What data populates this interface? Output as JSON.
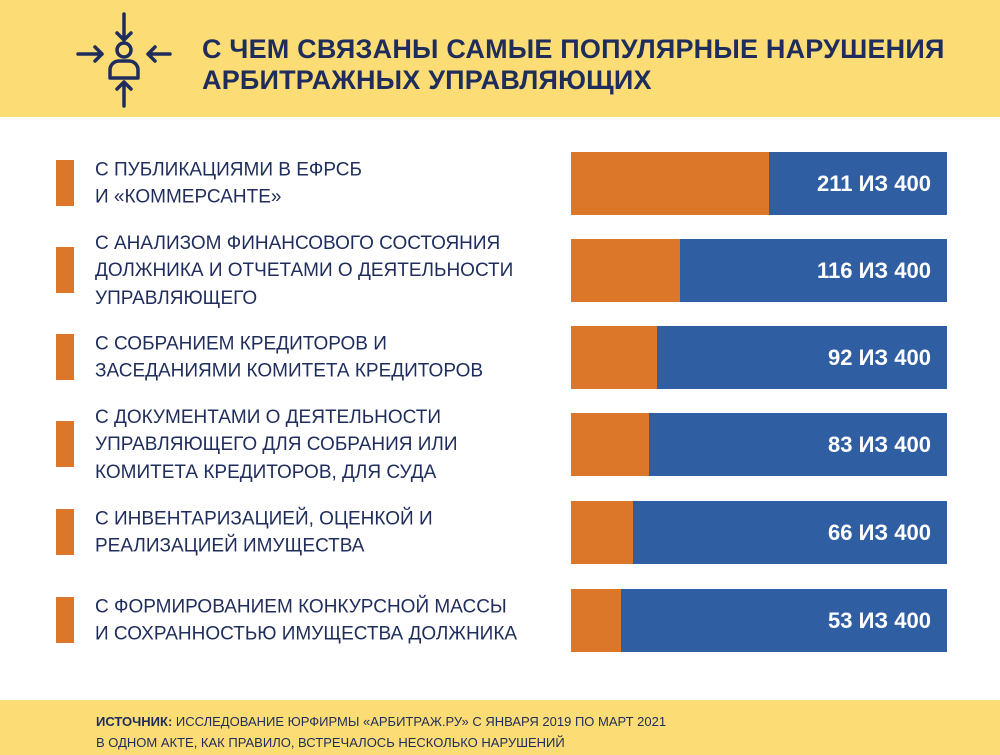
{
  "title_lines": [
    "С ЧЕМ СВЯЗАНЫ САМЫЕ ПОПУЛЯРНЫЕ НАРУШЕНИЯ",
    "АРБИТРАЖНЫХ УПРАВЛЯЮЩИХ"
  ],
  "colors": {
    "background_band": "#fcdc74",
    "accent": "#dc7628",
    "bar": "#2f5ea3",
    "text": "#1f2d5c"
  },
  "chart_data": {
    "type": "bar",
    "orientation": "horizontal-stacked",
    "total": 400,
    "categories": [
      "С ПУБЛИКАЦИЯМИ В ЕФРСБ И «КОММЕРСАНТЕ»",
      "С АНАЛИЗОМ ФИНАНСОВОГО СОСТОЯНИЯ ДОЛЖНИКА И ОТЧЕТАМИ О ДЕЯТЕЛЬНОСТИ УПРАВЛЯЮЩЕГО",
      "С СОБРАНИЕМ КРЕДИТОРОВ И ЗАСЕДАНИЯМИ КОМИТЕТА КРЕДИТОРОВ",
      "С ДОКУМЕНТАМИ О ДЕЯТЕЛЬНОСТИ УПРАВЛЯЮЩЕГО ДЛЯ СОБРАНИЯ ИЛИ КОМИТЕТА КРЕДИТОРОВ, ДЛЯ СУДА",
      "С ИНВЕНТАРИЗАЦИЕЙ, ОЦЕНКОЙ И РЕАЛИЗАЦИЕЙ ИМУЩЕСТВА",
      "С ФОРМИРОВАНИЕМ КОНКУРСНОЙ МАССЫ И СОХРАННОСТЬЮ ИМУЩЕСТВА ДОЛЖНИКА"
    ],
    "label_lines": [
      [
        "С ПУБЛИКАЦИЯМИ В ЕФРСБ",
        "И «КОММЕРСАНТЕ»"
      ],
      [
        "С АНАЛИЗОМ ФИНАНСОВОГО СОСТОЯНИЯ",
        "ДОЛЖНИКА И ОТЧЕТАМИ О ДЕЯТЕЛЬНОСТИ",
        "УПРАВЛЯЮЩЕГО"
      ],
      [
        "С СОБРАНИЕМ КРЕДИТОРОВ И",
        "ЗАСЕДАНИЯМИ КОМИТЕТА КРЕДИТОРОВ"
      ],
      [
        "С ДОКУМЕНТАМИ О ДЕЯТЕЛЬНОСТИ",
        "УПРАВЛЯЮЩЕГО ДЛЯ СОБРАНИЯ ИЛИ",
        "КОМИТЕТА КРЕДИТОРОВ, ДЛЯ СУДА"
      ],
      [
        "С ИНВЕНТАРИЗАЦИЕЙ, ОЦЕНКОЙ И",
        "РЕАЛИЗАЦИЕЙ ИМУЩЕСТВА"
      ],
      [
        "С ФОРМИРОВАНИЕМ КОНКУРСНОЙ МАССЫ",
        "И СОХРАННОСТЬЮ ИМУЩЕСТВА ДОЛЖНИКА"
      ]
    ],
    "values": [
      211,
      116,
      92,
      83,
      66,
      53
    ],
    "data_labels": [
      "211 ИЗ 400",
      "116 ИЗ 400",
      "92 ИЗ 400",
      "83 ИЗ 400",
      "66 ИЗ 400",
      "53 ИЗ 400"
    ]
  },
  "footer": {
    "source_label": "ИСТОЧНИК:",
    "source_text": " ИССЛЕДОВАНИЕ ЮРФИРМЫ «АРБИТРАЖ.РУ» С ЯНВАРЯ 2019 ПО МАРТ 2021",
    "note": "В ОДНОМ АКТЕ, КАК ПРАВИЛО, ВСТРЕЧАЛОСЬ НЕСКОЛЬКО НАРУШЕНИЙ"
  }
}
